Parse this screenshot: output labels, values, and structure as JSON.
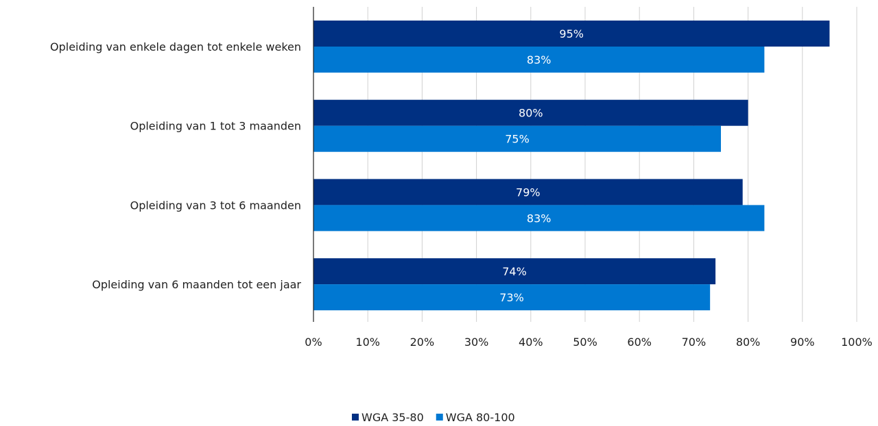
{
  "chart_data": {
    "type": "bar",
    "orientation": "horizontal",
    "categories": [
      "Opleiding van enkele dagen tot enkele weken",
      "Opleiding van 1 tot 3 maanden",
      "Opleiding van 3 tot 6 maanden",
      "Opleiding van 6 maanden tot een jaar"
    ],
    "series": [
      {
        "name": "WGA 35-80",
        "color": "#003082",
        "values": [
          95,
          80,
          79,
          74
        ],
        "labels": [
          "95%",
          "80%",
          "79%",
          "74%"
        ]
      },
      {
        "name": "WGA 80-100",
        "color": "#0078d2",
        "values": [
          83,
          75,
          83,
          73
        ],
        "labels": [
          "83%",
          "75%",
          "83%",
          "73%"
        ]
      }
    ],
    "xlim": [
      0,
      100
    ],
    "x_ticks": [
      0,
      10,
      20,
      30,
      40,
      50,
      60,
      70,
      80,
      90,
      100
    ],
    "x_tick_labels": [
      "0%",
      "10%",
      "20%",
      "30%",
      "40%",
      "50%",
      "60%",
      "70%",
      "80%",
      "90%",
      "100%"
    ],
    "grid": true,
    "legend": "bottom-center",
    "title": "",
    "xlabel": "",
    "ylabel": ""
  }
}
